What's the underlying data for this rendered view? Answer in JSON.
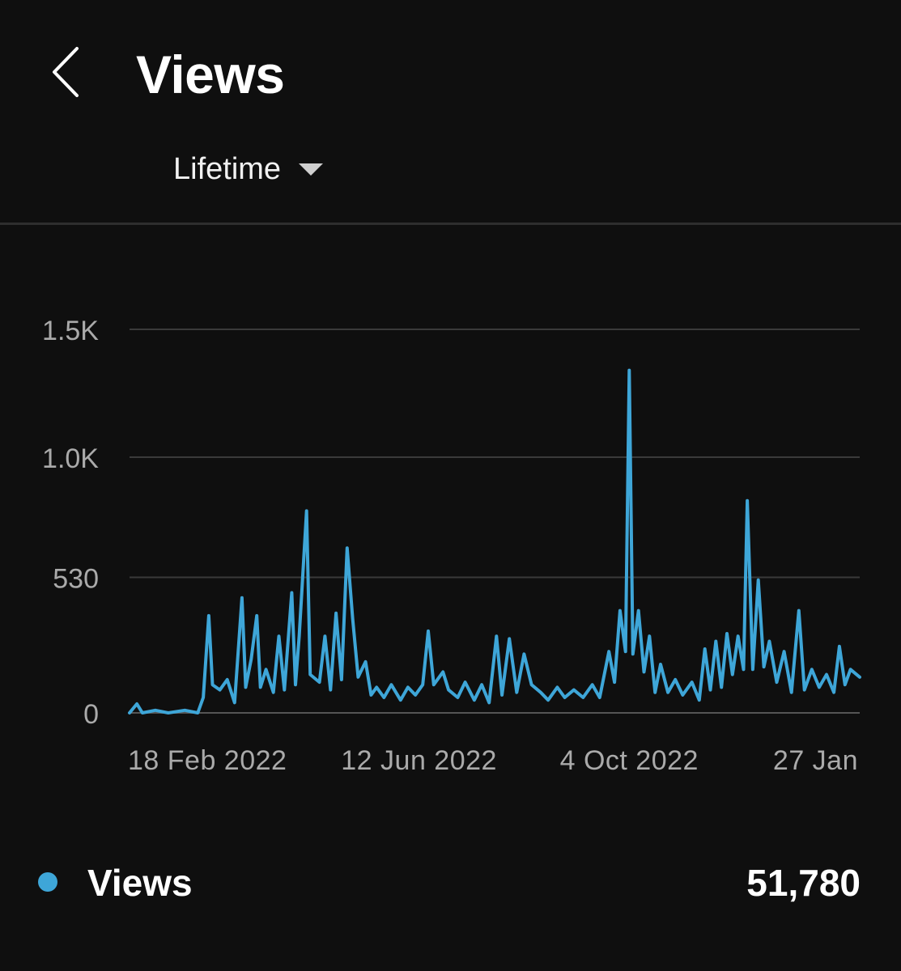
{
  "header": {
    "title": "Views",
    "period": "Lifetime",
    "back_icon": "chevron-left-icon"
  },
  "colors": {
    "background": "#0f0f0f",
    "series": "#3ea6d8",
    "grid": "#3a3a3a",
    "axis_text": "#aaaaaa"
  },
  "chart_data": {
    "type": "line",
    "x_type": "date",
    "x_range": [
      "2022-01-06",
      "2023-02-06"
    ],
    "ylim": [
      0,
      1500
    ],
    "yticks": [
      {
        "value": 0,
        "label": "0"
      },
      {
        "value": 530,
        "label": "530"
      },
      {
        "value": 1000,
        "label": "1.0K"
      },
      {
        "value": 1500,
        "label": "1.5K"
      }
    ],
    "xticks": [
      {
        "date": "2022-02-18",
        "label": "18 Feb 2022"
      },
      {
        "date": "2022-06-12",
        "label": "12 Jun 2022"
      },
      {
        "date": "2022-10-04",
        "label": "4 Oct 2022"
      },
      {
        "date": "2023-01-27",
        "label": "27 Jan"
      }
    ],
    "grid": true,
    "series": [
      {
        "name": "Views",
        "points": [
          [
            "2022-01-06",
            0
          ],
          [
            "2022-01-10",
            35
          ],
          [
            "2022-01-13",
            0
          ],
          [
            "2022-01-20",
            10
          ],
          [
            "2022-01-27",
            0
          ],
          [
            "2022-02-05",
            10
          ],
          [
            "2022-02-12",
            0
          ],
          [
            "2022-02-15",
            60
          ],
          [
            "2022-02-18",
            380
          ],
          [
            "2022-02-20",
            110
          ],
          [
            "2022-02-24",
            90
          ],
          [
            "2022-02-28",
            130
          ],
          [
            "2022-03-04",
            40
          ],
          [
            "2022-03-08",
            450
          ],
          [
            "2022-03-10",
            100
          ],
          [
            "2022-03-13",
            210
          ],
          [
            "2022-03-16",
            380
          ],
          [
            "2022-03-18",
            100
          ],
          [
            "2022-03-21",
            170
          ],
          [
            "2022-03-25",
            80
          ],
          [
            "2022-03-28",
            300
          ],
          [
            "2022-03-31",
            90
          ],
          [
            "2022-04-04",
            470
          ],
          [
            "2022-04-06",
            110
          ],
          [
            "2022-04-08",
            300
          ],
          [
            "2022-04-12",
            790
          ],
          [
            "2022-04-14",
            150
          ],
          [
            "2022-04-19",
            120
          ],
          [
            "2022-04-22",
            300
          ],
          [
            "2022-04-25",
            90
          ],
          [
            "2022-04-28",
            390
          ],
          [
            "2022-05-01",
            130
          ],
          [
            "2022-05-04",
            645
          ],
          [
            "2022-05-07",
            370
          ],
          [
            "2022-05-10",
            140
          ],
          [
            "2022-05-14",
            200
          ],
          [
            "2022-05-17",
            70
          ],
          [
            "2022-05-20",
            100
          ],
          [
            "2022-05-24",
            60
          ],
          [
            "2022-05-28",
            110
          ],
          [
            "2022-06-02",
            50
          ],
          [
            "2022-06-06",
            100
          ],
          [
            "2022-06-10",
            70
          ],
          [
            "2022-06-14",
            110
          ],
          [
            "2022-06-17",
            320
          ],
          [
            "2022-06-20",
            110
          ],
          [
            "2022-06-25",
            160
          ],
          [
            "2022-06-28",
            90
          ],
          [
            "2022-07-03",
            60
          ],
          [
            "2022-07-07",
            120
          ],
          [
            "2022-07-12",
            50
          ],
          [
            "2022-07-16",
            110
          ],
          [
            "2022-07-20",
            40
          ],
          [
            "2022-07-24",
            300
          ],
          [
            "2022-07-27",
            70
          ],
          [
            "2022-07-31",
            290
          ],
          [
            "2022-08-04",
            80
          ],
          [
            "2022-08-08",
            230
          ],
          [
            "2022-08-12",
            110
          ],
          [
            "2022-08-17",
            80
          ],
          [
            "2022-08-21",
            50
          ],
          [
            "2022-08-26",
            100
          ],
          [
            "2022-08-30",
            60
          ],
          [
            "2022-09-04",
            90
          ],
          [
            "2022-09-09",
            60
          ],
          [
            "2022-09-14",
            110
          ],
          [
            "2022-09-18",
            60
          ],
          [
            "2022-09-23",
            240
          ],
          [
            "2022-09-26",
            120
          ],
          [
            "2022-09-29",
            400
          ],
          [
            "2022-10-02",
            240
          ],
          [
            "2022-10-04",
            1340
          ],
          [
            "2022-10-06",
            230
          ],
          [
            "2022-10-09",
            400
          ],
          [
            "2022-10-12",
            160
          ],
          [
            "2022-10-15",
            300
          ],
          [
            "2022-10-18",
            80
          ],
          [
            "2022-10-21",
            190
          ],
          [
            "2022-10-25",
            80
          ],
          [
            "2022-10-29",
            130
          ],
          [
            "2022-11-02",
            70
          ],
          [
            "2022-11-07",
            120
          ],
          [
            "2022-11-11",
            50
          ],
          [
            "2022-11-14",
            250
          ],
          [
            "2022-11-17",
            90
          ],
          [
            "2022-11-20",
            280
          ],
          [
            "2022-11-23",
            100
          ],
          [
            "2022-11-26",
            310
          ],
          [
            "2022-11-29",
            150
          ],
          [
            "2022-12-02",
            300
          ],
          [
            "2022-12-05",
            170
          ],
          [
            "2022-12-07",
            830
          ],
          [
            "2022-12-10",
            170
          ],
          [
            "2022-12-13",
            520
          ],
          [
            "2022-12-16",
            180
          ],
          [
            "2022-12-19",
            280
          ],
          [
            "2022-12-23",
            120
          ],
          [
            "2022-12-27",
            240
          ],
          [
            "2022-12-31",
            80
          ],
          [
            "2023-01-04",
            400
          ],
          [
            "2023-01-07",
            90
          ],
          [
            "2023-01-11",
            170
          ],
          [
            "2023-01-15",
            100
          ],
          [
            "2023-01-19",
            150
          ],
          [
            "2023-01-23",
            80
          ],
          [
            "2023-01-26",
            260
          ],
          [
            "2023-01-29",
            110
          ],
          [
            "2023-02-01",
            170
          ],
          [
            "2023-02-06",
            140
          ]
        ]
      }
    ]
  },
  "legend": {
    "label": "Views",
    "total": "51,780"
  }
}
